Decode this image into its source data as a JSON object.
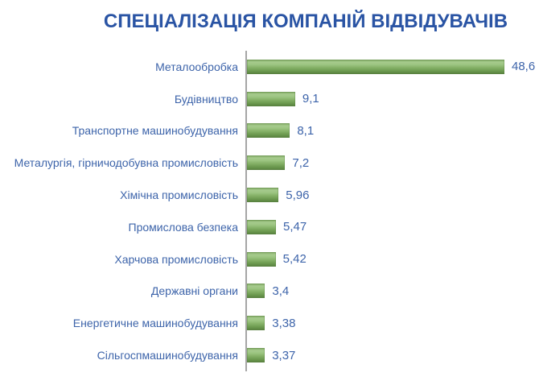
{
  "chart_data": {
    "type": "bar",
    "orientation": "horizontal",
    "title": "СПЕЦІАЛІЗАЦІЯ КОМПАНІЙ ВІДВІДУВАЧІВ",
    "categories": [
      "Металообробка",
      "Будівництво",
      "Транспортне машинобудування",
      "Металургія, гірничодобувна промисловість",
      "Хімічна промисловість",
      "Промислова безпека",
      "Харчова промисловість",
      "Державні органи",
      "Енергетичне машинобудування",
      "Сільгоспмашинобудування"
    ],
    "values": [
      48.6,
      9.1,
      8.1,
      7.2,
      5.96,
      5.47,
      5.42,
      3.4,
      3.38,
      3.37
    ],
    "value_labels": [
      "48,6",
      "9,1",
      "8,1",
      "7,2",
      "5,96",
      "5,47",
      "5,42",
      "3,4",
      "3,38",
      "3,37"
    ],
    "xlabel": "",
    "ylabel": "",
    "xlim": [
      0,
      50
    ],
    "grid": false,
    "legend": false,
    "decimal_separator": ",",
    "colors": {
      "title": "#2A54A4",
      "labels": "#3D64AA",
      "axis": "#A6A6A6",
      "bar_base": "#8CB56E",
      "bar_gradient_top": "#7FA862",
      "bar_gradient_light": "#A6CB8D",
      "bar_gradient_bottom": "#577F3E",
      "background": "#FFFFFF"
    }
  }
}
